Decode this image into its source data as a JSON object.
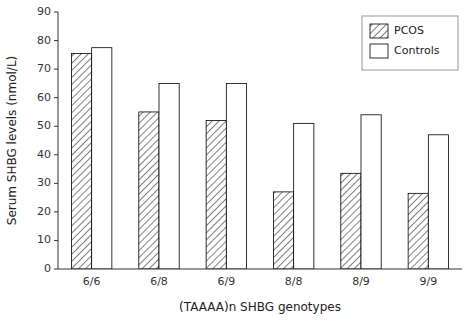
{
  "chart_data": {
    "type": "bar",
    "categories": [
      "6/6",
      "6/8",
      "6/9",
      "8/8",
      "8/9",
      "9/9"
    ],
    "series": [
      {
        "name": "PCOS",
        "color": "#ffffff",
        "values": [
          75.5,
          55.0,
          52.0,
          27.0,
          33.5,
          26.5
        ]
      },
      {
        "name": "Controls",
        "color": "#ffffff",
        "values": [
          77.5,
          65.0,
          65.0,
          51.0,
          54.0,
          47.0
        ]
      }
    ],
    "xlabel": "(TAAAA)n SHBG genotypes",
    "ylabel": "Serum SHBG levels (nmol/L)",
    "ylim": [
      0,
      90
    ],
    "yticks": [
      0,
      10,
      20,
      30,
      40,
      50,
      60,
      70,
      80,
      90
    ],
    "grid": false,
    "legend": "upper right"
  }
}
